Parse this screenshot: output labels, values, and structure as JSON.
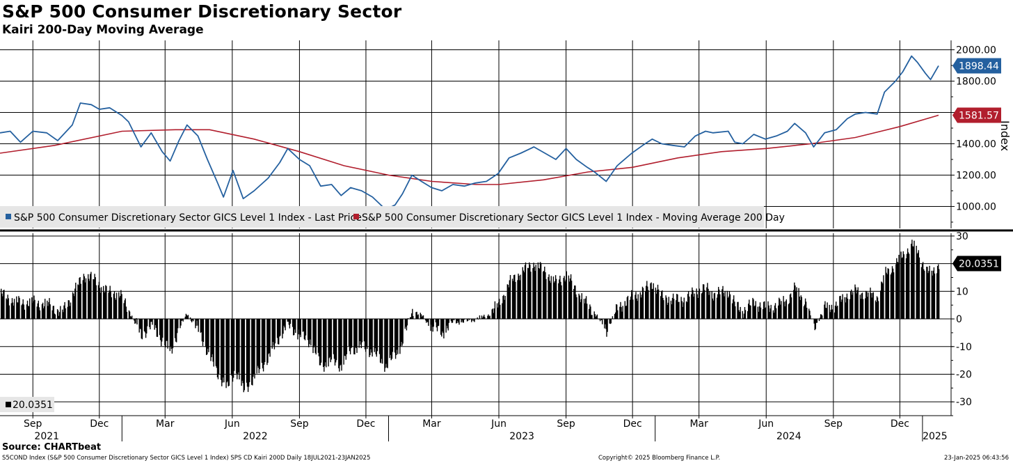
{
  "title": "S&P 500 Consumer Discretionary Sector",
  "subtitle": "Kairi 200-Day Moving Average",
  "source": "Source: CHARTbeat",
  "footer": {
    "left": "S5COND Index (S&P 500 Consumer Discretionary Sector GICS Level 1 Index) SPS CD Kairi 200D  Daily 18JUL2021-23JAN2025",
    "center": "Copyright© 2025 Bloomberg Finance L.P.",
    "right": "23-Jan-2025 06:43:56"
  },
  "colors": {
    "price": "#24609f",
    "ma": "#b11e2d",
    "kairi": "#000000",
    "grid": "#000000"
  },
  "chart_data": [
    {
      "type": "line",
      "title": "S&P 500 Consumer Discretionary Sector",
      "ylabel": "Index",
      "ylim": [
        860,
        2060
      ],
      "yticks": [
        1000,
        1200,
        1400,
        1600,
        1800,
        2000
      ],
      "ytick_labels": [
        "1000.00",
        "1200.00",
        "1400.00",
        "1600.00",
        "1800.00",
        "2000.00"
      ],
      "x_start": "2021-07-18",
      "x_end": "2025-01-23",
      "series": [
        {
          "name": "S&P 500 Consumer Discretionary Sector GICS Level 1 Index - Last Price",
          "last_label": "1898.44",
          "points": [
            [
              "2021-07-18",
              1470
            ],
            [
              "2021-08-01",
              1480
            ],
            [
              "2021-08-15",
              1410
            ],
            [
              "2021-09-01",
              1480
            ],
            [
              "2021-09-20",
              1470
            ],
            [
              "2021-10-05",
              1420
            ],
            [
              "2021-10-25",
              1520
            ],
            [
              "2021-11-05",
              1660
            ],
            [
              "2021-11-20",
              1650
            ],
            [
              "2021-12-01",
              1620
            ],
            [
              "2021-12-15",
              1630
            ],
            [
              "2022-01-01",
              1580
            ],
            [
              "2022-01-10",
              1540
            ],
            [
              "2022-01-27",
              1380
            ],
            [
              "2022-02-10",
              1470
            ],
            [
              "2022-02-25",
              1350
            ],
            [
              "2022-03-08",
              1290
            ],
            [
              "2022-03-20",
              1420
            ],
            [
              "2022-03-31",
              1520
            ],
            [
              "2022-04-15",
              1450
            ],
            [
              "2022-04-28",
              1300
            ],
            [
              "2022-05-12",
              1150
            ],
            [
              "2022-05-20",
              1060
            ],
            [
              "2022-06-02",
              1230
            ],
            [
              "2022-06-16",
              1050
            ],
            [
              "2022-07-01",
              1100
            ],
            [
              "2022-07-20",
              1180
            ],
            [
              "2022-08-05",
              1280
            ],
            [
              "2022-08-16",
              1370
            ],
            [
              "2022-09-01",
              1300
            ],
            [
              "2022-09-15",
              1260
            ],
            [
              "2022-09-30",
              1130
            ],
            [
              "2022-10-15",
              1140
            ],
            [
              "2022-10-28",
              1070
            ],
            [
              "2022-11-10",
              1120
            ],
            [
              "2022-11-25",
              1100
            ],
            [
              "2022-12-10",
              1060
            ],
            [
              "2022-12-28",
              980
            ],
            [
              "2023-01-10",
              1010
            ],
            [
              "2023-01-20",
              1080
            ],
            [
              "2023-02-02",
              1200
            ],
            [
              "2023-02-15",
              1160
            ],
            [
              "2023-03-01",
              1120
            ],
            [
              "2023-03-15",
              1100
            ],
            [
              "2023-03-30",
              1140
            ],
            [
              "2023-04-15",
              1130
            ],
            [
              "2023-04-30",
              1150
            ],
            [
              "2023-05-15",
              1160
            ],
            [
              "2023-05-31",
              1210
            ],
            [
              "2023-06-15",
              1310
            ],
            [
              "2023-07-01",
              1340
            ],
            [
              "2023-07-19",
              1380
            ],
            [
              "2023-08-03",
              1340
            ],
            [
              "2023-08-18",
              1300
            ],
            [
              "2023-09-01",
              1370
            ],
            [
              "2023-09-15",
              1300
            ],
            [
              "2023-09-30",
              1250
            ],
            [
              "2023-10-10",
              1220
            ],
            [
              "2023-10-26",
              1160
            ],
            [
              "2023-11-10",
              1260
            ],
            [
              "2023-11-30",
              1340
            ],
            [
              "2023-12-15",
              1390
            ],
            [
              "2023-12-28",
              1430
            ],
            [
              "2024-01-10",
              1400
            ],
            [
              "2024-01-25",
              1390
            ],
            [
              "2024-02-10",
              1380
            ],
            [
              "2024-02-25",
              1450
            ],
            [
              "2024-03-10",
              1480
            ],
            [
              "2024-03-20",
              1470
            ],
            [
              "2024-04-10",
              1480
            ],
            [
              "2024-04-19",
              1410
            ],
            [
              "2024-04-30",
              1400
            ],
            [
              "2024-05-15",
              1460
            ],
            [
              "2024-05-31",
              1430
            ],
            [
              "2024-06-15",
              1450
            ],
            [
              "2024-06-30",
              1480
            ],
            [
              "2024-07-10",
              1530
            ],
            [
              "2024-07-25",
              1470
            ],
            [
              "2024-08-05",
              1380
            ],
            [
              "2024-08-20",
              1470
            ],
            [
              "2024-09-05",
              1490
            ],
            [
              "2024-09-20",
              1560
            ],
            [
              "2024-10-01",
              1590
            ],
            [
              "2024-10-15",
              1600
            ],
            [
              "2024-10-31",
              1590
            ],
            [
              "2024-11-10",
              1730
            ],
            [
              "2024-11-25",
              1800
            ],
            [
              "2024-12-05",
              1860
            ],
            [
              "2024-12-17",
              1960
            ],
            [
              "2024-12-25",
              1920
            ],
            [
              "2025-01-05",
              1850
            ],
            [
              "2025-01-12",
              1810
            ],
            [
              "2025-01-23",
              1898
            ]
          ]
        },
        {
          "name": "S&P 500 Consumer Discretionary Sector GICS Level 1 Index - Moving Average 200 Day",
          "last_label": "1581.57",
          "points": [
            [
              "2021-07-18",
              1340
            ],
            [
              "2021-10-01",
              1390
            ],
            [
              "2022-01-01",
              1480
            ],
            [
              "2022-03-15",
              1490
            ],
            [
              "2022-05-01",
              1490
            ],
            [
              "2022-07-01",
              1430
            ],
            [
              "2022-09-01",
              1350
            ],
            [
              "2022-11-01",
              1260
            ],
            [
              "2023-01-01",
              1200
            ],
            [
              "2023-03-01",
              1160
            ],
            [
              "2023-05-01",
              1140
            ],
            [
              "2023-06-01",
              1140
            ],
            [
              "2023-08-01",
              1170
            ],
            [
              "2023-10-01",
              1220
            ],
            [
              "2023-12-01",
              1250
            ],
            [
              "2024-02-01",
              1310
            ],
            [
              "2024-04-01",
              1350
            ],
            [
              "2024-06-01",
              1370
            ],
            [
              "2024-08-01",
              1400
            ],
            [
              "2024-10-01",
              1440
            ],
            [
              "2024-12-01",
              1510
            ],
            [
              "2025-01-23",
              1582
            ]
          ]
        }
      ]
    },
    {
      "type": "bar",
      "title": "Kairi 200-Day Moving Average",
      "ylim": [
        -35,
        31
      ],
      "yticks": [
        -30,
        -20,
        -10,
        0,
        10,
        20,
        30
      ],
      "ytick_labels": [
        "-30",
        "-20",
        "-10",
        "0",
        "10",
        "20",
        "30"
      ],
      "series": [
        {
          "name": "Kairi 200D",
          "last_label": "20.0351",
          "points": [
            [
              "2021-07-18",
              9
            ],
            [
              "2021-08-10",
              6
            ],
            [
              "2021-09-01",
              6
            ],
            [
              "2021-09-25",
              5
            ],
            [
              "2021-10-10",
              2
            ],
            [
              "2021-10-25",
              9
            ],
            [
              "2021-11-10",
              16
            ],
            [
              "2021-11-25",
              14
            ],
            [
              "2021-12-10",
              10
            ],
            [
              "2021-12-28",
              9
            ],
            [
              "2022-01-10",
              3
            ],
            [
              "2022-01-27",
              -6
            ],
            [
              "2022-02-10",
              -2
            ],
            [
              "2022-02-25",
              -8
            ],
            [
              "2022-03-08",
              -12
            ],
            [
              "2022-03-20",
              -3
            ],
            [
              "2022-03-31",
              2
            ],
            [
              "2022-04-15",
              -4
            ],
            [
              "2022-04-28",
              -12
            ],
            [
              "2022-05-12",
              -20
            ],
            [
              "2022-05-25",
              -25
            ],
            [
              "2022-06-05",
              -18
            ],
            [
              "2022-06-16",
              -26
            ],
            [
              "2022-07-01",
              -21
            ],
            [
              "2022-07-20",
              -14
            ],
            [
              "2022-08-05",
              -6
            ],
            [
              "2022-08-16",
              -2
            ],
            [
              "2022-09-01",
              -6
            ],
            [
              "2022-09-15",
              -8
            ],
            [
              "2022-09-30",
              -17
            ],
            [
              "2022-10-15",
              -15
            ],
            [
              "2022-10-28",
              -17
            ],
            [
              "2022-11-10",
              -11
            ],
            [
              "2022-11-25",
              -10
            ],
            [
              "2022-12-10",
              -12
            ],
            [
              "2022-12-28",
              -17
            ],
            [
              "2023-01-10",
              -13
            ],
            [
              "2023-01-20",
              -8
            ],
            [
              "2023-02-02",
              3
            ],
            [
              "2023-02-15",
              1
            ],
            [
              "2023-03-01",
              -3
            ],
            [
              "2023-03-15",
              -5
            ],
            [
              "2023-03-30",
              -1
            ],
            [
              "2023-04-15",
              -1
            ],
            [
              "2023-04-30",
              0
            ],
            [
              "2023-05-15",
              1
            ],
            [
              "2023-05-31",
              5
            ],
            [
              "2023-06-15",
              13
            ],
            [
              "2023-07-01",
              17
            ],
            [
              "2023-07-19",
              20
            ],
            [
              "2023-08-03",
              17
            ],
            [
              "2023-08-18",
              13
            ],
            [
              "2023-09-01",
              16
            ],
            [
              "2023-09-15",
              10
            ],
            [
              "2023-09-30",
              5
            ],
            [
              "2023-10-10",
              2
            ],
            [
              "2023-10-26",
              -4
            ],
            [
              "2023-11-10",
              4
            ],
            [
              "2023-11-30",
              8
            ],
            [
              "2023-12-15",
              10
            ],
            [
              "2023-12-28",
              13
            ],
            [
              "2024-01-10",
              8
            ],
            [
              "2024-01-25",
              7
            ],
            [
              "2024-02-10",
              7
            ],
            [
              "2024-02-25",
              10
            ],
            [
              "2024-03-10",
              11
            ],
            [
              "2024-03-20",
              9
            ],
            [
              "2024-04-10",
              10
            ],
            [
              "2024-04-19",
              5
            ],
            [
              "2024-04-30",
              3
            ],
            [
              "2024-05-15",
              6
            ],
            [
              "2024-05-31",
              4
            ],
            [
              "2024-06-15",
              5
            ],
            [
              "2024-06-30",
              7
            ],
            [
              "2024-07-10",
              11
            ],
            [
              "2024-07-25",
              6
            ],
            [
              "2024-08-05",
              -3
            ],
            [
              "2024-08-20",
              4
            ],
            [
              "2024-09-05",
              5
            ],
            [
              "2024-09-20",
              9
            ],
            [
              "2024-10-01",
              10
            ],
            [
              "2024-10-15",
              9
            ],
            [
              "2024-10-31",
              8
            ],
            [
              "2024-11-10",
              16
            ],
            [
              "2024-11-25",
              20
            ],
            [
              "2024-12-05",
              23
            ],
            [
              "2024-12-17",
              27
            ],
            [
              "2024-12-25",
              24
            ],
            [
              "2025-01-05",
              18
            ],
            [
              "2025-01-12",
              16
            ],
            [
              "2025-01-23",
              20
            ]
          ]
        }
      ]
    }
  ],
  "legend": {
    "price": "S&P 500 Consumer Discretionary Sector GICS Level 1 Index - Last Price",
    "ma": "S&P 500 Consumer Discretionary Sector GICS Level 1 Index - Moving Average 200 Day",
    "kairi": "20.0351"
  },
  "x_axis": {
    "months": [
      {
        "label": "Sep",
        "date": "2021-09-01"
      },
      {
        "label": "Dec",
        "date": "2021-12-01"
      },
      {
        "label": "Mar",
        "date": "2022-03-01"
      },
      {
        "label": "Jun",
        "date": "2022-06-01"
      },
      {
        "label": "Sep",
        "date": "2022-09-01"
      },
      {
        "label": "Dec",
        "date": "2022-12-01"
      },
      {
        "label": "Mar",
        "date": "2023-03-01"
      },
      {
        "label": "Jun",
        "date": "2023-06-01"
      },
      {
        "label": "Sep",
        "date": "2023-09-01"
      },
      {
        "label": "Dec",
        "date": "2023-12-01"
      },
      {
        "label": "Mar",
        "date": "2024-03-01"
      },
      {
        "label": "Jun",
        "date": "2024-06-01"
      },
      {
        "label": "Sep",
        "date": "2024-09-01"
      },
      {
        "label": "Dec",
        "date": "2024-12-01"
      }
    ],
    "years": [
      {
        "label": "2021",
        "start": "2021-07-18",
        "end": "2022-01-01"
      },
      {
        "label": "2022",
        "start": "2022-01-01",
        "end": "2023-01-01"
      },
      {
        "label": "2023",
        "start": "2023-01-01",
        "end": "2024-01-01"
      },
      {
        "label": "2024",
        "start": "2024-01-01",
        "end": "2025-01-01"
      },
      {
        "label": "2025",
        "start": "2025-01-01",
        "end": "2025-01-23"
      }
    ]
  }
}
